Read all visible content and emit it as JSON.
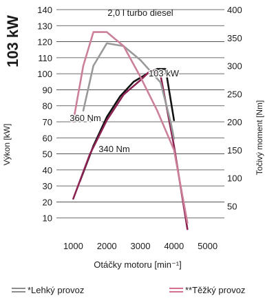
{
  "power_label": "103 kW",
  "chart_data": {
    "type": "line",
    "title": "2,0 l turbo diesel",
    "xlabel": "Otáčky motoru [min⁻¹]",
    "ylabel_left": "Výkon [kW]",
    "ylabel_right": "Točivý moment [Nm]",
    "x_ticks": [
      1000,
      2000,
      3000,
      4000,
      5000
    ],
    "y_left_ticks": [
      10,
      20,
      30,
      40,
      50,
      60,
      70,
      80,
      90,
      100,
      110,
      120,
      130,
      140
    ],
    "y_right_ticks": [
      50,
      100,
      150,
      200,
      250,
      300,
      350,
      400
    ],
    "xlim": [
      500,
      5500
    ],
    "ylim_left": [
      0,
      140
    ],
    "ylim_right": [
      0,
      400
    ],
    "grid": "horizontal",
    "annotations": [
      {
        "text": "103 kW",
        "series": "power_light"
      },
      {
        "text": "360 Nm",
        "series": "torque_heavy"
      },
      {
        "text": "340 Nm",
        "series": "torque_light"
      }
    ],
    "series": [
      {
        "key": "power_light",
        "axis": "left",
        "color": "#111111",
        "x": [
          1200,
          1600,
          2000,
          2400,
          2800,
          3200,
          3500,
          3750,
          4000
        ],
        "y": [
          33,
          55,
          73,
          86,
          95,
          100,
          103,
          103,
          71
        ]
      },
      {
        "key": "power_heavy",
        "axis": "left",
        "color": "#8b2252",
        "x": [
          1000,
          1500,
          2000,
          2500,
          3000,
          3300,
          3600,
          4000,
          4400
        ],
        "y": [
          22,
          50,
          71,
          87,
          96,
          102,
          99,
          55,
          3
        ]
      },
      {
        "key": "torque_light",
        "axis": "right",
        "color": "#999999",
        "x": [
          1300,
          1600,
          2000,
          2500,
          3000,
          3600,
          3900,
          4000
        ],
        "y": [
          220,
          300,
          340,
          335,
          310,
          270,
          200,
          170
        ]
      },
      {
        "key": "torque_heavy",
        "axis": "right",
        "color": "#cc7f98",
        "x": [
          1000,
          1300,
          1600,
          2000,
          2500,
          3000,
          3500,
          4000,
          4400
        ],
        "y": [
          200,
          300,
          360,
          360,
          335,
          280,
          220,
          150,
          20
        ]
      }
    ]
  },
  "legend": {
    "light": "*Lehký provoz",
    "heavy": "**Těžký provoz"
  }
}
